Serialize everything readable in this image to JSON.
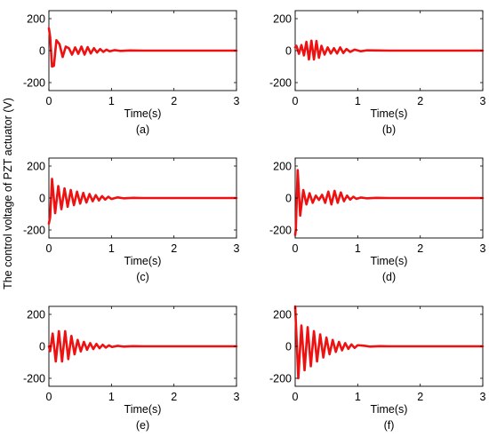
{
  "figure": {
    "ylabel": "The control voltage of PZT actuator (V)",
    "line_color": "#ee1111"
  },
  "chart_data": [
    {
      "type": "line",
      "caption": "(a)",
      "xlabel": "Time(s)",
      "xlim": [
        0,
        3
      ],
      "ylim": [
        -250,
        250
      ],
      "xticks": [
        0,
        1,
        2,
        3
      ],
      "yticks": [
        200,
        0,
        -200
      ],
      "series": [
        {
          "x": [
            0,
            0.02,
            0.05,
            0.08,
            0.12,
            0.17,
            0.22,
            0.27,
            0.32,
            0.37,
            0.42,
            0.47,
            0.52,
            0.57,
            0.62,
            0.67,
            0.72,
            0.77,
            0.82,
            0.87,
            0.92,
            0.97,
            1.05,
            1.15,
            1.3,
            1.5,
            3
          ],
          "y": [
            140,
            85,
            -100,
            -95,
            65,
            40,
            -40,
            25,
            15,
            -25,
            20,
            -20,
            25,
            -25,
            22,
            -18,
            15,
            -12,
            10,
            -8,
            6,
            -4,
            3,
            -2,
            1,
            0,
            0
          ]
        }
      ]
    },
    {
      "type": "line",
      "caption": "(b)",
      "xlabel": "Time(s)",
      "xlim": [
        0,
        3
      ],
      "ylim": [
        -250,
        250
      ],
      "xticks": [
        0,
        1,
        2,
        3
      ],
      "yticks": [
        200,
        0,
        -200
      ],
      "series": [
        {
          "x": [
            0,
            0.02,
            0.06,
            0.1,
            0.14,
            0.18,
            0.22,
            0.26,
            0.3,
            0.34,
            0.38,
            0.42,
            0.47,
            0.52,
            0.57,
            0.62,
            0.67,
            0.72,
            0.77,
            0.82,
            0.88,
            0.95,
            1.05,
            1.15,
            1.3,
            1.5,
            3
          ],
          "y": [
            20,
            30,
            -20,
            35,
            -30,
            55,
            -55,
            62,
            -55,
            60,
            -45,
            30,
            -25,
            20,
            -18,
            15,
            -18,
            20,
            -15,
            10,
            -8,
            6,
            -4,
            2,
            1,
            0,
            0
          ]
        }
      ]
    },
    {
      "type": "line",
      "caption": "(c)",
      "xlabel": "Time(s)",
      "xlim": [
        0,
        3
      ],
      "ylim": [
        -250,
        250
      ],
      "xticks": [
        0,
        1,
        2,
        3
      ],
      "yticks": [
        200,
        0,
        -200
      ],
      "series": [
        {
          "x": [
            0,
            0.02,
            0.05,
            0.1,
            0.15,
            0.2,
            0.25,
            0.3,
            0.35,
            0.4,
            0.45,
            0.5,
            0.55,
            0.6,
            0.65,
            0.7,
            0.75,
            0.8,
            0.85,
            0.9,
            0.95,
            1.0,
            1.1,
            1.2,
            1.35,
            1.5,
            3
          ],
          "y": [
            -160,
            -120,
            120,
            -95,
            75,
            -70,
            60,
            -55,
            50,
            -45,
            40,
            -35,
            32,
            -28,
            25,
            -20,
            18,
            -15,
            12,
            -10,
            8,
            -6,
            4,
            -2,
            1,
            0,
            0
          ]
        }
      ]
    },
    {
      "type": "line",
      "caption": "(d)",
      "xlabel": "Time(s)",
      "xlim": [
        0,
        3
      ],
      "ylim": [
        -250,
        250
      ],
      "xticks": [
        0,
        1,
        2,
        3
      ],
      "yticks": [
        200,
        0,
        -200
      ],
      "series": [
        {
          "x": [
            0,
            0.01,
            0.04,
            0.08,
            0.13,
            0.18,
            0.23,
            0.28,
            0.33,
            0.38,
            0.43,
            0.48,
            0.53,
            0.58,
            0.63,
            0.68,
            0.73,
            0.78,
            0.83,
            0.88,
            0.93,
            0.98,
            1.05,
            1.15,
            1.3,
            1.5,
            3
          ],
          "y": [
            -230,
            -200,
            175,
            -110,
            50,
            -40,
            30,
            -30,
            15,
            -12,
            20,
            -30,
            40,
            -40,
            45,
            -30,
            35,
            -20,
            15,
            -10,
            8,
            -5,
            3,
            -2,
            1,
            0,
            0
          ]
        }
      ]
    },
    {
      "type": "line",
      "caption": "(e)",
      "xlabel": "Time(s)",
      "xlim": [
        0,
        3
      ],
      "ylim": [
        -250,
        250
      ],
      "xticks": [
        0,
        1,
        2,
        3
      ],
      "yticks": [
        200,
        0,
        -200
      ],
      "series": [
        {
          "x": [
            0,
            0.02,
            0.06,
            0.11,
            0.16,
            0.21,
            0.26,
            0.31,
            0.36,
            0.41,
            0.46,
            0.51,
            0.56,
            0.61,
            0.66,
            0.71,
            0.76,
            0.81,
            0.86,
            0.91,
            0.96,
            1.01,
            1.1,
            1.2,
            1.35,
            1.5,
            3
          ],
          "y": [
            0,
            -30,
            80,
            -95,
            95,
            -95,
            95,
            -80,
            65,
            -50,
            40,
            -32,
            28,
            -22,
            20,
            -17,
            15,
            -12,
            10,
            -8,
            6,
            -4,
            3,
            -2,
            1,
            0,
            0
          ]
        }
      ]
    },
    {
      "type": "line",
      "caption": "(f)",
      "xlabel": "Time(s)",
      "xlim": [
        0,
        3
      ],
      "ylim": [
        -250,
        250
      ],
      "xticks": [
        0,
        1,
        2,
        3
      ],
      "yticks": [
        200,
        0,
        -200
      ],
      "series": [
        {
          "x": [
            0,
            0.01,
            0.05,
            0.1,
            0.15,
            0.2,
            0.25,
            0.3,
            0.35,
            0.4,
            0.45,
            0.5,
            0.55,
            0.6,
            0.65,
            0.7,
            0.75,
            0.8,
            0.85,
            0.9,
            0.95,
            1.0,
            1.1,
            1.2,
            1.35,
            1.5,
            3
          ],
          "y": [
            250,
            160,
            -200,
            130,
            -150,
            120,
            -125,
            95,
            -95,
            75,
            -70,
            55,
            -50,
            40,
            -35,
            28,
            -25,
            20,
            -16,
            12,
            -10,
            7,
            4,
            -2,
            1,
            0,
            0
          ]
        }
      ]
    }
  ]
}
